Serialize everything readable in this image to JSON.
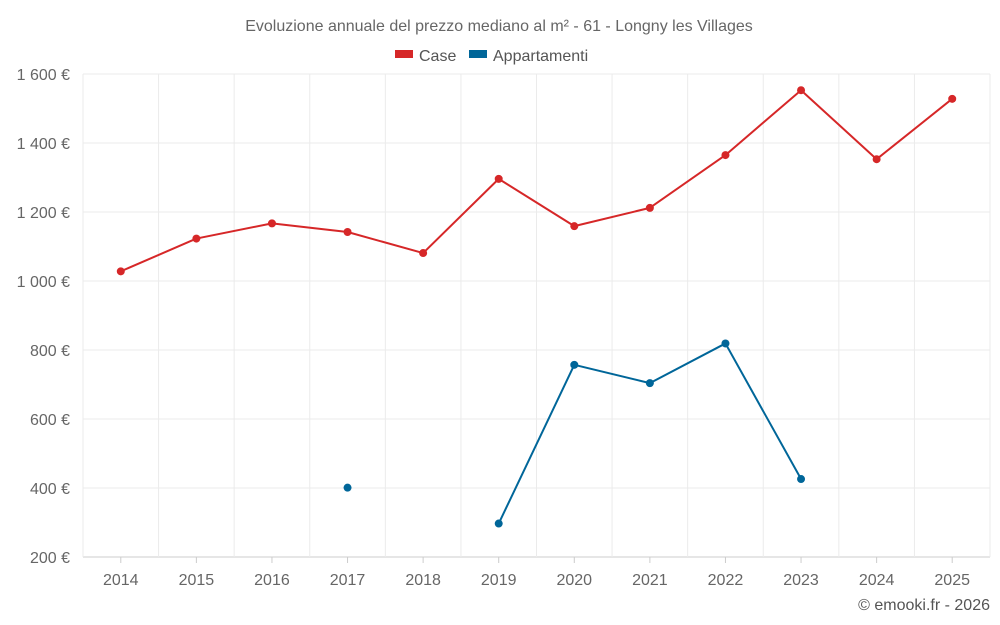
{
  "chart_data": {
    "type": "line",
    "title": "Evoluzione annuale del prezzo mediano al m² - 61 - Longny les Villages",
    "categories": [
      "2014",
      "2015",
      "2016",
      "2017",
      "2018",
      "2019",
      "2020",
      "2021",
      "2022",
      "2023",
      "2024",
      "2025"
    ],
    "ylim": [
      200,
      1600
    ],
    "yticks": [
      200,
      400,
      600,
      800,
      1000,
      1200,
      1400,
      1600
    ],
    "ytick_labels": [
      "200 €",
      "400 €",
      "600 €",
      "800 €",
      "1 000 €",
      "1 200 €",
      "1 400 €",
      "1 600 €"
    ],
    "grid": true,
    "legend_position": "top-center",
    "series": [
      {
        "name": "Case",
        "color": "#d62728",
        "values": [
          1028,
          1123,
          1167,
          1142,
          1081,
          1296,
          1159,
          1212,
          1365,
          1553,
          1353,
          1528
        ]
      },
      {
        "name": "Appartamenti",
        "color": "#006699",
        "values": [
          null,
          null,
          null,
          401,
          null,
          297,
          757,
          704,
          819,
          426,
          null,
          null
        ]
      }
    ]
  },
  "credit": "© emooki.fr - 2026"
}
